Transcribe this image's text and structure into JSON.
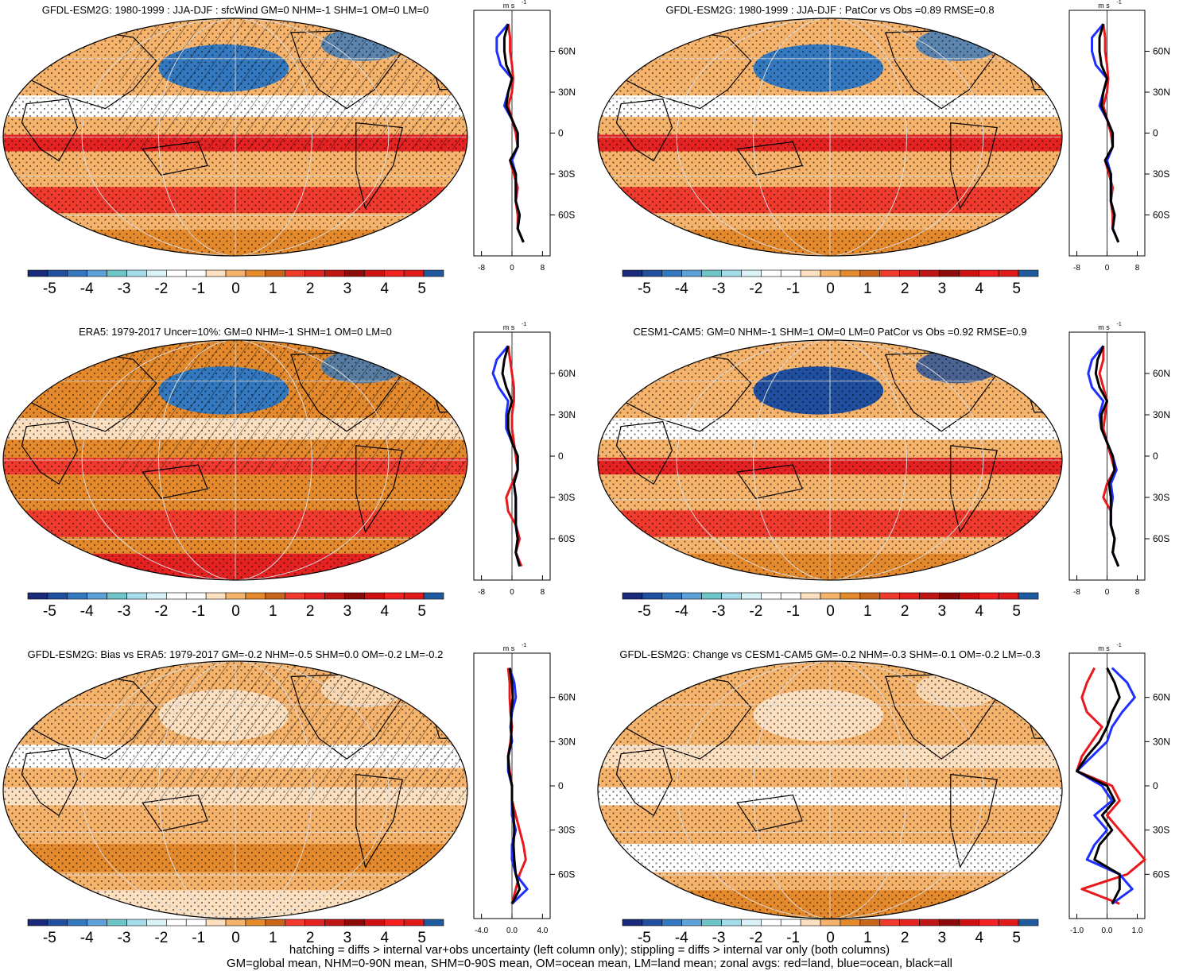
{
  "colorbar": {
    "colors": [
      "#1a2a7a",
      "#1f4f9e",
      "#3479c0",
      "#5ea0d8",
      "#6fc4c8",
      "#a5dce9",
      "#d8f2f8",
      "#ffffff",
      "#ffffff",
      "#fde0c0",
      "#f6b36c",
      "#e58a2c",
      "#c9651b",
      "#f03a2e",
      "#e52222",
      "#c01515",
      "#8c0a0a",
      "#d01010",
      "#f22020",
      "#e01a1a",
      "#1f5a9e"
    ],
    "tick_labels": [
      "-5",
      "-4",
      "-3",
      "-2",
      "-1",
      "0",
      "1",
      "2",
      "3",
      "4",
      "5"
    ]
  },
  "zonal_axis": {
    "unit_label": "m s",
    "unit_sup": "-1",
    "lat_labels": [
      "60N",
      "30N",
      "0",
      "30S",
      "60S"
    ]
  },
  "panels": [
    {
      "title": "GFDL-ESM2G: 1980-1999 : JJA-DJF : sfcWind GM=0 NHM=-1 SHM=1 OM=0 LM=0",
      "x_tick_labels": [
        "-8",
        "0",
        "8"
      ],
      "hatching": true,
      "map_colors": {
        "background": "#f6b36c",
        "north_pacific": "#3479c0",
        "south_band": "#f03a2e",
        "equator_band": "#e52222",
        "tropical_north": "#ffffff",
        "polar_south": "#e58a2c"
      }
    },
    {
      "title": "GFDL-ESM2G: 1980-1999 : JJA-DJF : PatCor vs Obs =0.89 RMSE=0.8",
      "x_tick_labels": [
        "-8",
        "0",
        "8"
      ],
      "hatching": false,
      "map_colors": {
        "background": "#f6b36c",
        "north_pacific": "#3479c0",
        "south_band": "#f03a2e",
        "equator_band": "#e52222",
        "tropical_north": "#ffffff",
        "polar_south": "#e58a2c"
      }
    },
    {
      "title": "ERA5: 1979-2017 Uncer=10%: GM=0 NHM=-1 SHM=1 OM=0 LM=0",
      "x_tick_labels": [
        "-8",
        "0",
        "8"
      ],
      "hatching": true,
      "map_colors": {
        "background": "#e58a2c",
        "north_pacific": "#3479c0",
        "south_band": "#f03a2e",
        "equator_band": "#f03a2e",
        "tropical_north": "#fde0c0",
        "polar_south": "#e52222"
      }
    },
    {
      "title": "CESM1-CAM5: GM=0 NHM=-1 SHM=1 OM=0 LM=0 PatCor vs Obs =0.92 RMSE=0.9",
      "x_tick_labels": [
        "-8",
        "0",
        "8"
      ],
      "hatching": false,
      "map_colors": {
        "background": "#f6b36c",
        "north_pacific": "#1f4f9e",
        "south_band": "#f03a2e",
        "equator_band": "#e52222",
        "tropical_north": "#ffffff",
        "polar_south": "#e58a2c"
      }
    },
    {
      "title": "GFDL-ESM2G: Bias vs ERA5: 1979-2017 GM=-0.2 NHM=-0.5 SHM=0.0 OM=-0.2 LM=-0.2",
      "x_tick_labels": [
        "-4.0",
        "0.0",
        "4.0"
      ],
      "hatching": true,
      "map_colors": {
        "background": "#f6b36c",
        "north_pacific": "#fde0c0",
        "south_band": "#e58a2c",
        "equator_band": "#fde0c0",
        "tropical_north": "#ffffff",
        "polar_south": "#fde0c0"
      }
    },
    {
      "title": "GFDL-ESM2G: Change vs CESM1-CAM5 GM=-0.2 NHM=-0.3 SHM=-0.1 OM=-0.2 LM=-0.3",
      "x_tick_labels": [
        "-1.0",
        "0.0",
        "1.0"
      ],
      "hatching": false,
      "map_colors": {
        "background": "#f6b36c",
        "north_pacific": "#fde0c0",
        "south_band": "#ffffff",
        "equator_band": "#ffffff",
        "tropical_north": "#fde0c0",
        "polar_south": "#e58a2c"
      }
    }
  ],
  "chart_data": [
    {
      "type": "line",
      "title": "GFDL-ESM2G: 1980-1999 : JJA-DJF : sfcWind GM=0 NHM=-1 SHM=1 OM=0 LM=0",
      "xlim": [
        -10,
        10
      ],
      "ylim": [
        -90,
        90
      ],
      "y": [
        80,
        70,
        60,
        50,
        40,
        30,
        20,
        10,
        0,
        -10,
        -20,
        -30,
        -40,
        -50,
        -60,
        -70,
        -80
      ],
      "series": [
        {
          "color": "#e8191c",
          "x": [
            -1,
            -0.5,
            -0.5,
            0,
            0.3,
            0,
            -1,
            0,
            1,
            1.5,
            -0.5,
            0.5,
            1.5,
            1,
            1.5,
            1.5,
            3
          ]
        },
        {
          "color": "#1f2fff",
          "x": [
            -1,
            -4,
            -4,
            -3,
            0,
            -1,
            -2,
            0,
            1.5,
            1.5,
            0,
            1,
            1,
            1,
            2,
            1.5,
            3
          ]
        },
        {
          "color": "#000000",
          "x": [
            -1,
            -2,
            -2,
            -1.5,
            0,
            -1,
            -1.5,
            0,
            1.5,
            1.5,
            -0.5,
            1,
            1,
            1,
            2,
            1.5,
            3
          ]
        }
      ]
    },
    {
      "type": "line",
      "title": "GFDL-ESM2G: 1980-1999 : JJA-DJF : PatCor vs Obs =0.89 RMSE=0.8",
      "xlim": [
        -10,
        10
      ],
      "ylim": [
        -90,
        90
      ],
      "y": [
        80,
        70,
        60,
        50,
        40,
        30,
        20,
        10,
        0,
        -10,
        -20,
        -30,
        -40,
        -50,
        -60,
        -70,
        -80
      ],
      "series": [
        {
          "color": "#e8191c",
          "x": [
            -1,
            -0.5,
            -0.5,
            0,
            0.3,
            0,
            -1,
            0,
            1,
            1.5,
            -0.5,
            0.5,
            1.5,
            1,
            1.5,
            1.5,
            3
          ]
        },
        {
          "color": "#1f2fff",
          "x": [
            -1,
            -4,
            -4,
            -3,
            0,
            -1,
            -2,
            0,
            1.5,
            1.5,
            0,
            1,
            1,
            1,
            2,
            1.5,
            3
          ]
        },
        {
          "color": "#000000",
          "x": [
            -1,
            -2,
            -2,
            -1.5,
            0,
            -1,
            -1.5,
            0,
            1.5,
            1.5,
            -0.5,
            1,
            1,
            1,
            2,
            1.5,
            3
          ]
        }
      ]
    },
    {
      "type": "line",
      "title": "ERA5: 1979-2017 Uncer=10%: GM=0 NHM=-1 SHM=1 OM=0 LM=0",
      "xlim": [
        -10,
        10
      ],
      "ylim": [
        -90,
        90
      ],
      "y": [
        80,
        70,
        60,
        50,
        40,
        30,
        20,
        10,
        0,
        -10,
        -20,
        -30,
        -40,
        -50,
        -60,
        -70,
        -80
      ],
      "series": [
        {
          "color": "#e8191c",
          "x": [
            -1,
            -0.5,
            0,
            0.5,
            0.5,
            0,
            0,
            0.5,
            1,
            1.5,
            0,
            -1.5,
            -1,
            1,
            2,
            1,
            2.5
          ]
        },
        {
          "color": "#1f2fff",
          "x": [
            -1,
            -4,
            -5,
            -3.5,
            -1,
            -1.5,
            -1.5,
            0,
            1.5,
            1.5,
            0.5,
            1,
            1,
            1,
            1.5,
            1,
            2
          ]
        },
        {
          "color": "#000000",
          "x": [
            -1,
            -2,
            -2.5,
            -1.5,
            0,
            -1,
            -1,
            0,
            1.5,
            1.5,
            0.5,
            1,
            1,
            1,
            1.5,
            1,
            2
          ]
        }
      ]
    },
    {
      "type": "line",
      "title": "CESM1-CAM5: GM=0 NHM=-1 SHM=1 OM=0 LM=0 PatCor vs Obs =0.92 RMSE=0.9",
      "xlim": [
        -10,
        10
      ],
      "ylim": [
        -90,
        90
      ],
      "y": [
        80,
        70,
        60,
        50,
        40,
        30,
        20,
        10,
        0,
        -10,
        -20,
        -30,
        -40,
        -50,
        -60,
        -70,
        -80
      ],
      "series": [
        {
          "color": "#e8191c",
          "x": [
            -1,
            -1,
            -2,
            -1,
            0,
            -0.5,
            -1,
            0,
            1,
            2,
            0,
            -1,
            1,
            1,
            2,
            1.5,
            3
          ]
        },
        {
          "color": "#1f2fff",
          "x": [
            -1,
            -4,
            -5,
            -4,
            -1,
            -2,
            -1.5,
            0,
            1.5,
            2.5,
            1,
            1.5,
            1,
            1,
            2,
            1.5,
            3
          ]
        },
        {
          "color": "#000000",
          "x": [
            -1,
            -2.5,
            -3,
            -2,
            0,
            -1.5,
            -1.5,
            0,
            1.5,
            2,
            0.5,
            1,
            1,
            1,
            2,
            1.5,
            3
          ]
        }
      ]
    },
    {
      "type": "line",
      "title": "GFDL-ESM2G: Bias vs ERA5: 1979-2017 GM=-0.2 NHM=-0.5 SHM=0.0 OM=-0.2 LM=-0.2",
      "xlim": [
        -5,
        5
      ],
      "ylim": [
        -90,
        90
      ],
      "y": [
        80,
        70,
        60,
        50,
        40,
        30,
        20,
        10,
        0,
        -10,
        -20,
        -30,
        -40,
        -50,
        -60,
        -70,
        -80
      ],
      "series": [
        {
          "color": "#e8191c",
          "x": [
            -0.5,
            -0.3,
            -0.3,
            -0.2,
            0,
            -0.2,
            -0.5,
            -0.3,
            0,
            0,
            0.5,
            1,
            1.5,
            1.8,
            1,
            0.5,
            0
          ]
        },
        {
          "color": "#1f2fff",
          "x": [
            -0.3,
            0.3,
            0.5,
            0,
            -0.2,
            0,
            -0.5,
            -0.5,
            0,
            0,
            0,
            0.5,
            0,
            0,
            0.5,
            2,
            0
          ]
        },
        {
          "color": "#000000",
          "x": [
            -0.3,
            0,
            0.1,
            -0.1,
            -0.1,
            -0.1,
            -0.5,
            -0.4,
            0,
            0,
            0.2,
            0.3,
            0.2,
            0.3,
            0.5,
            1,
            0
          ]
        }
      ]
    },
    {
      "type": "line",
      "title": "GFDL-ESM2G: Change vs CESM1-CAM5 GM=-0.2 NHM=-0.3 SHM=-0.1 OM=-0.2 LM=-0.3",
      "xlim": [
        -1.5,
        1.5
      ],
      "ylim": [
        -90,
        90
      ],
      "y": [
        80,
        70,
        60,
        50,
        40,
        30,
        20,
        10,
        0,
        -10,
        -20,
        -30,
        -40,
        -50,
        -60,
        -70,
        -80
      ],
      "series": [
        {
          "color": "#e8191c",
          "x": [
            -0.5,
            -0.8,
            -1,
            -0.8,
            -0.2,
            -0.6,
            -1,
            -1.2,
            0.2,
            0.5,
            0,
            0.5,
            1,
            1.5,
            0.8,
            -1,
            0.5
          ]
        },
        {
          "color": "#1f2fff",
          "x": [
            0.2,
            0.8,
            1.1,
            0.6,
            0.2,
            0,
            -0.6,
            -1.2,
            -0.2,
            0.2,
            -0.5,
            0,
            -0.5,
            -0.8,
            0.5,
            1,
            0.2
          ]
        },
        {
          "color": "#000000",
          "x": [
            0,
            0.3,
            0.5,
            0.2,
            0,
            -0.3,
            -0.8,
            -1.2,
            0,
            0.3,
            -0.2,
            0.2,
            -0.3,
            -0.5,
            0.5,
            0.5,
            0.2
          ]
        }
      ]
    }
  ],
  "footnote": {
    "line1": "hatching = diffs > internal var+obs uncertainty (left column only); stippling = diffs > internal var only (both columns)",
    "line2": "GM=global mean, NHM=0-90N mean, SHM=0-90S mean, OM=ocean mean, LM=land mean; zonal avgs: red=land, blue=ocean, black=all"
  }
}
